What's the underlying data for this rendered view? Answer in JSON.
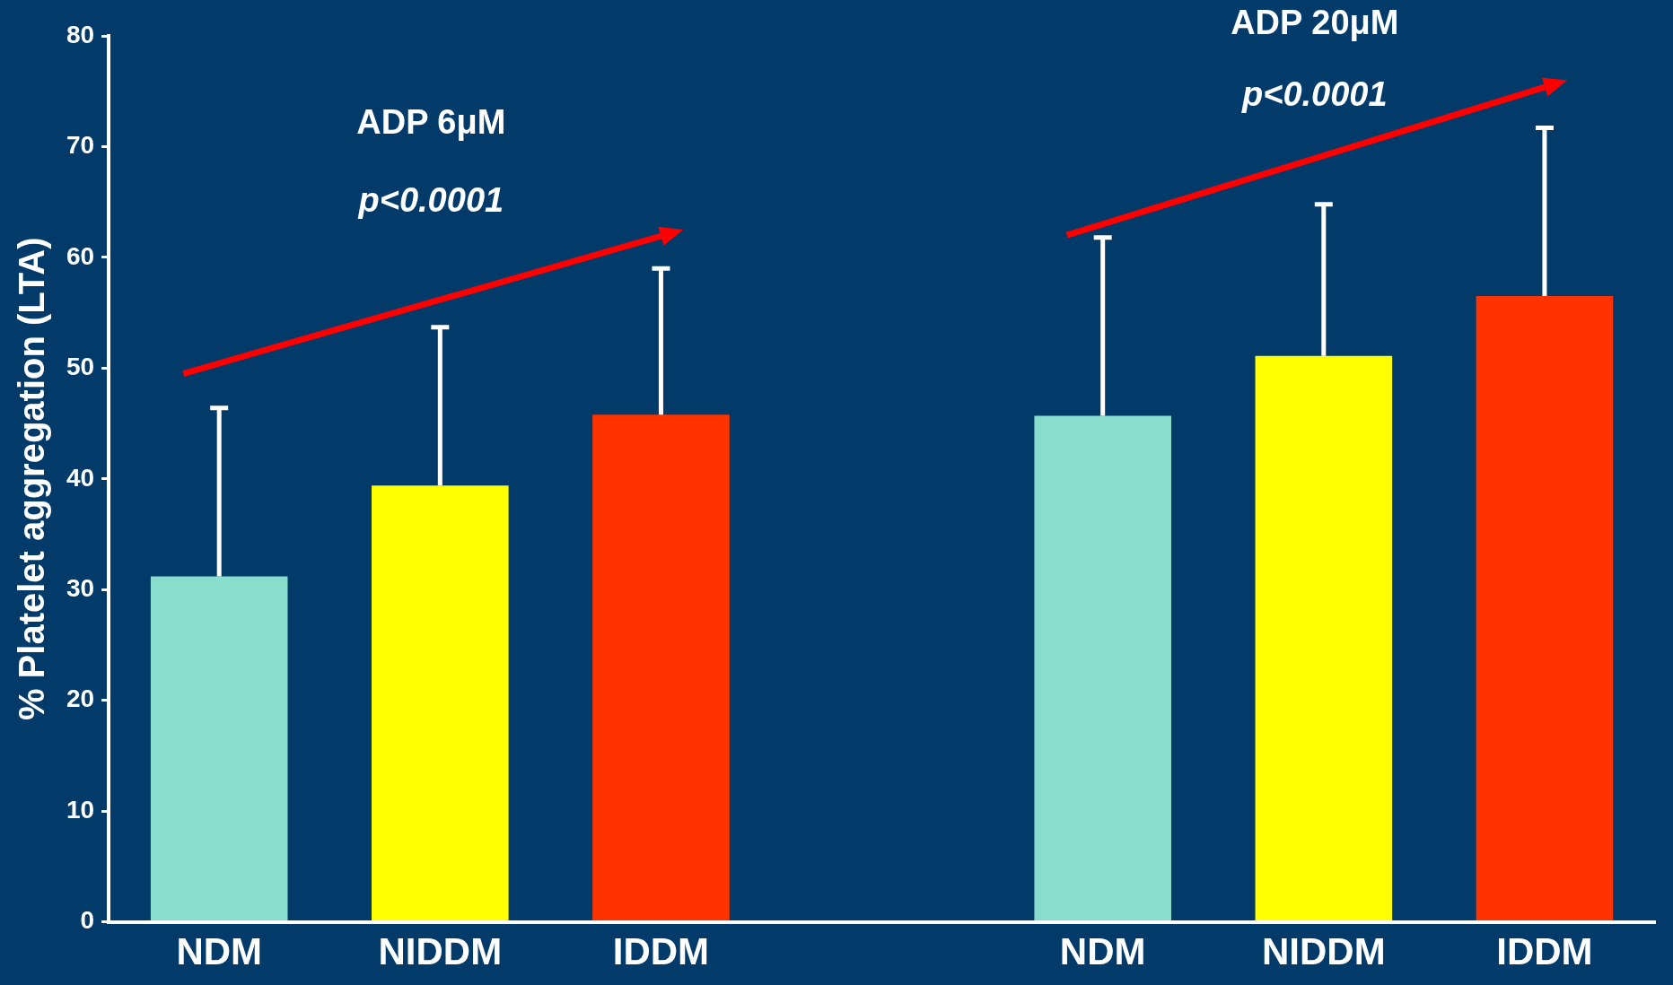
{
  "chart_data": {
    "type": "bar",
    "ylabel": "% Platelet aggregation (LTA)",
    "categories": [
      "NDM",
      "NIDDM",
      "IDDM",
      null,
      "NDM",
      "NIDDM",
      "IDDM"
    ],
    "values": [
      31.2,
      39.4,
      45.8,
      null,
      45.7,
      51.1,
      56.5
    ],
    "errors": [
      [
        31.2,
        46.4
      ],
      [
        39.4,
        53.7
      ],
      [
        45.8,
        59.0
      ],
      null,
      [
        45.7,
        61.8
      ],
      [
        51.1,
        64.8
      ],
      [
        56.5,
        71.7
      ]
    ],
    "colors": [
      "#88ddcc",
      "#ffff00",
      "#ff3300",
      "#000000",
      "#88ddcc",
      "#ffff00",
      "#ff3300"
    ],
    "ylim": [
      0,
      80
    ],
    "yticks": [
      0,
      10,
      20,
      30,
      40,
      50,
      60,
      70,
      80
    ],
    "grid": false,
    "annotations": [
      "ADP 6μM",
      "p<0.0001",
      "ADP 20μM",
      "p<0.0001"
    ]
  }
}
